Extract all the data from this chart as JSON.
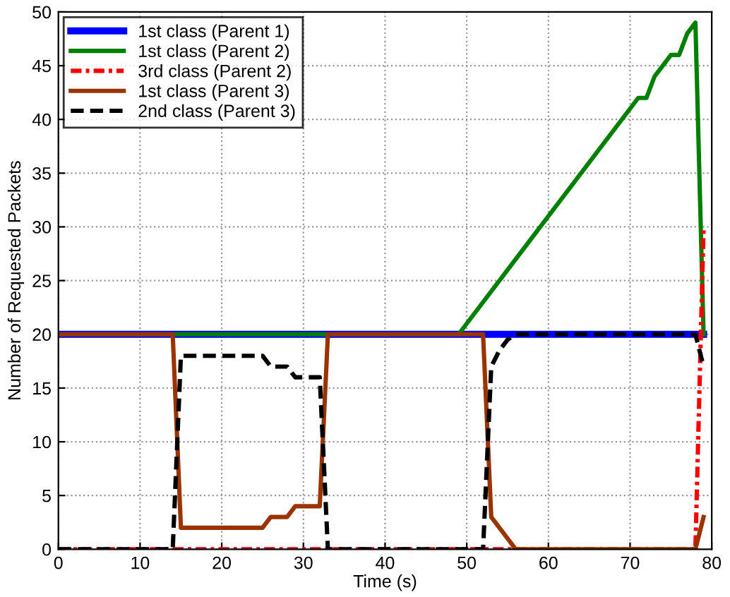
{
  "chart_data": {
    "type": "line",
    "xlabel": "Time (s)",
    "ylabel": "Number of Requested Packets",
    "xlim": [
      0,
      80
    ],
    "ylim": [
      0,
      50
    ],
    "xticks": [
      0,
      10,
      20,
      30,
      40,
      50,
      60,
      70,
      80
    ],
    "yticks": [
      0,
      5,
      10,
      15,
      20,
      25,
      30,
      35,
      40,
      45,
      50
    ],
    "grid": true,
    "legend": "top left",
    "series": [
      {
        "name": "1st class (Parent 1)",
        "color": "#0000ff",
        "line_style": "solid",
        "x": [
          0,
          79
        ],
        "values": [
          20,
          20
        ]
      },
      {
        "name": "1st class (Parent 2)",
        "color": "#008000",
        "line_style": "solid",
        "x": [
          0,
          49,
          71,
          72,
          73,
          74,
          75,
          76,
          77,
          78,
          79
        ],
        "values": [
          20,
          20,
          42,
          42,
          44,
          45,
          46,
          46,
          48,
          49,
          20
        ]
      },
      {
        "name": "3rd class (Parent 2)",
        "color": "#ff0000",
        "line_style": "dashdot",
        "x": [
          0,
          78,
          79
        ],
        "values": [
          0,
          0,
          30
        ]
      },
      {
        "name": "1st class (Parent 3)",
        "color": "#993300",
        "line_style": "solid",
        "x": [
          0,
          14,
          15,
          25,
          26,
          28,
          29,
          32,
          33,
          52,
          53,
          56,
          78,
          79
        ],
        "values": [
          20,
          20,
          2,
          2,
          3,
          3,
          4,
          4,
          20,
          20,
          3,
          0,
          0,
          3
        ]
      },
      {
        "name": "2nd class (Parent 3)",
        "color": "#000000",
        "line_style": "dashed",
        "x": [
          0,
          14,
          15,
          25,
          26,
          28,
          29,
          32,
          33,
          52,
          53,
          54,
          55,
          56,
          78,
          79
        ],
        "values": [
          0,
          0,
          18,
          18,
          17,
          17,
          16,
          16,
          0,
          0,
          17,
          18.5,
          19.5,
          20,
          20,
          17
        ]
      }
    ]
  }
}
